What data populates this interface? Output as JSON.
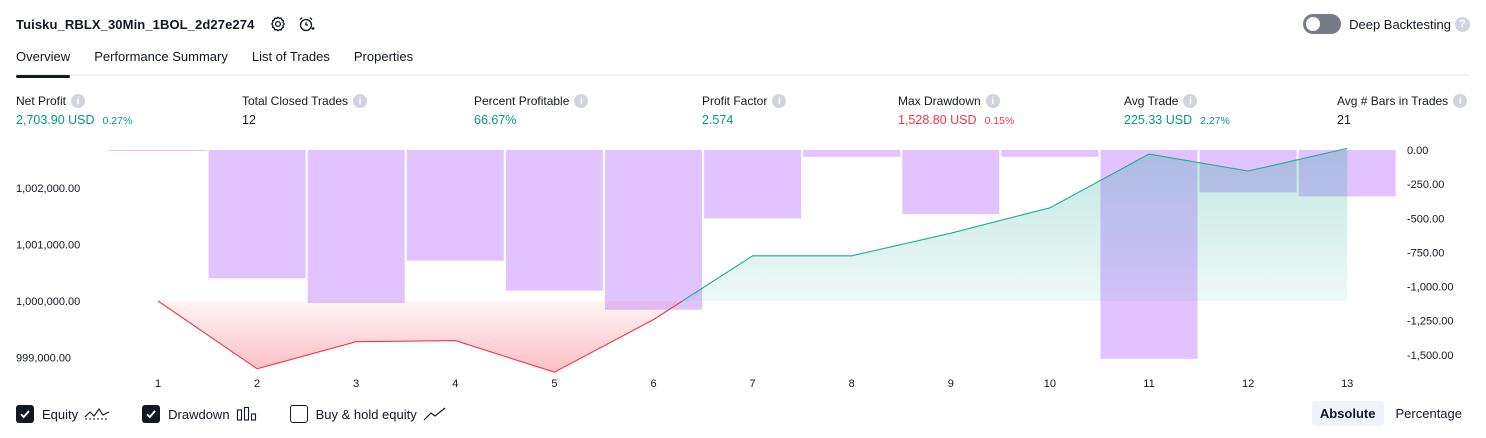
{
  "header": {
    "title": "Tuisku_RBLX_30Min_1BOL_2d27e274",
    "deep_backtesting_label": "Deep Backtesting",
    "help_glyph": "?"
  },
  "tabs": [
    {
      "label": "Overview",
      "active": true
    },
    {
      "label": "Performance Summary",
      "active": false
    },
    {
      "label": "List of Trades",
      "active": false
    },
    {
      "label": "Properties",
      "active": false
    }
  ],
  "metrics": {
    "net_profit": {
      "label": "Net Profit",
      "value": "2,703.90 USD",
      "percent": "0.27%"
    },
    "total_closed_trades": {
      "label": "Total Closed Trades",
      "value": "12"
    },
    "percent_profitable": {
      "label": "Percent Profitable",
      "value": "66.67%"
    },
    "profit_factor": {
      "label": "Profit Factor",
      "value": "2.574"
    },
    "max_drawdown": {
      "label": "Max Drawdown",
      "value": "1,528.80 USD",
      "percent": "0.15%"
    },
    "avg_trade": {
      "label": "Avg Trade",
      "value": "225.33 USD",
      "percent": "2.27%"
    },
    "avg_bars_in_trades": {
      "label": "Avg # Bars in Trades",
      "value": "21"
    },
    "info_glyph": "i"
  },
  "legend": {
    "equity": {
      "label": "Equity",
      "checked": true
    },
    "drawdown": {
      "label": "Drawdown",
      "checked": true
    },
    "buy_hold": {
      "label": "Buy & hold equity",
      "checked": false
    }
  },
  "mode": {
    "absolute": "Absolute",
    "percentage": "Percentage",
    "selected": "Absolute"
  },
  "colors": {
    "positive": "#089981",
    "negative": "#f23645",
    "drawdown_bar": "#e1c3ff",
    "equity_line_up": "#22ab94",
    "equity_line_down": "#f23645"
  },
  "chart_data": {
    "type": "area",
    "x": [
      "1",
      "2",
      "3",
      "4",
      "5",
      "6",
      "7",
      "8",
      "9",
      "10",
      "11",
      "12",
      "13"
    ],
    "equity_baseline": 1000000,
    "series": [
      {
        "values": [
          1000000,
          998800,
          999280,
          999300,
          998740,
          999670,
          1000800,
          1000800,
          1001200,
          1001650,
          1002600,
          1002300,
          1002700
        ]
      },
      {
        "values": [
          0,
          -940,
          -1120,
          -810,
          -1030,
          -1170,
          -500,
          -50,
          -470,
          -50,
          -1530,
          -310,
          -340
        ]
      }
    ],
    "left_axis": {
      "ticks": [
        "1,002,000.00",
        "1,001,000.00",
        "1,000,000.00",
        "999,000.00"
      ],
      "tick_values": [
        1002000,
        1001000,
        1000000,
        999000
      ]
    },
    "right_axis": {
      "ticks": [
        "0.00",
        "-250.00",
        "-500.00",
        "-750.00",
        "-1,000.00",
        "-1,250.00",
        "-1,500.00"
      ],
      "tick_values": [
        0,
        -250,
        -500,
        -750,
        -1000,
        -1250,
        -1500
      ]
    }
  }
}
